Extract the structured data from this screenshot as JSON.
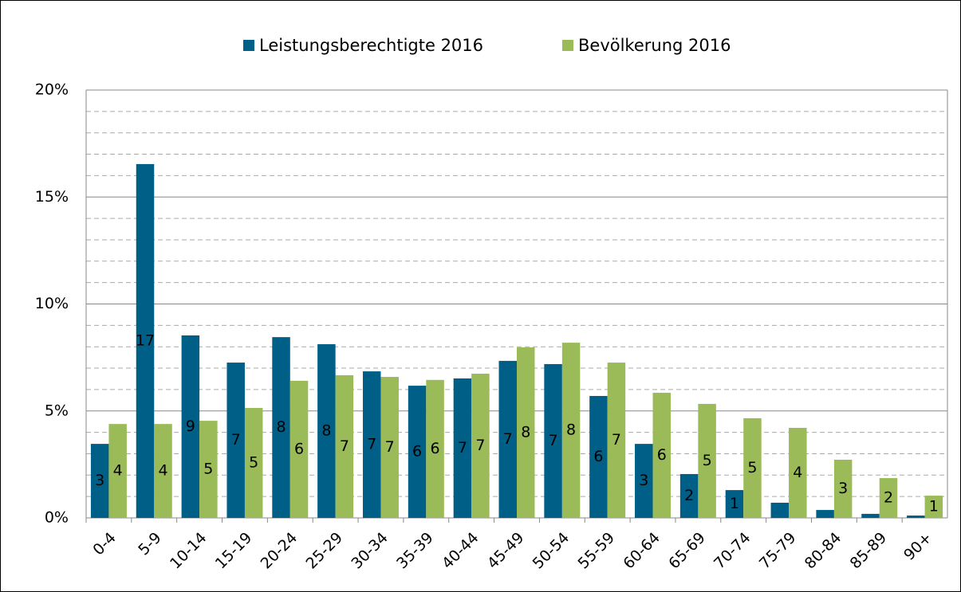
{
  "chart_data": {
    "type": "bar",
    "categories": [
      "0-4",
      "5-9",
      "10-14",
      "15-19",
      "20-24",
      "25-29",
      "30-34",
      "35-39",
      "40-44",
      "45-49",
      "50-54",
      "55-59",
      "60-64",
      "65-69",
      "70-74",
      "75-79",
      "80-84",
      "85-89",
      "90+"
    ],
    "series": [
      {
        "name": "Leistungsberechtigte 2016",
        "color": "#005f87",
        "label_color": "#ffffff",
        "values": [
          3.46,
          16.54,
          8.53,
          7.26,
          8.45,
          8.12,
          6.85,
          6.18,
          6.52,
          7.34,
          7.19,
          5.7,
          3.46,
          2.05,
          1.3,
          0.71,
          0.37,
          0.19,
          0.11
        ],
        "value_labels": [
          "3",
          "17",
          "9",
          "7",
          "8",
          "8",
          "7",
          "6",
          "7",
          "7",
          "7",
          "6",
          "3",
          "2",
          "1",
          null,
          null,
          null,
          null
        ]
      },
      {
        "name": "Bevölkerung 2016",
        "color": "#9bbb59",
        "label_color": "#000000",
        "values": [
          4.39,
          4.39,
          4.54,
          5.14,
          6.41,
          6.67,
          6.59,
          6.45,
          6.74,
          7.97,
          8.19,
          7.26,
          5.85,
          5.33,
          4.66,
          4.21,
          2.72,
          1.86,
          1.04
        ],
        "value_labels": [
          "4",
          "4",
          "5",
          "5",
          "6",
          "7",
          "7",
          "6",
          "7",
          "8",
          "8",
          "7",
          "6",
          "5",
          "5",
          "4",
          "3",
          "2",
          "1"
        ]
      }
    ],
    "ylim": [
      0,
      20
    ],
    "yticks": [
      {
        "value": 0,
        "label": "0%"
      },
      {
        "value": 5,
        "label": "5%"
      },
      {
        "value": 10,
        "label": "10%"
      },
      {
        "value": 15,
        "label": "15%"
      },
      {
        "value": 20,
        "label": "20%"
      }
    ],
    "minor_yticks": [
      1,
      2,
      3,
      4,
      6,
      7,
      8,
      9,
      11,
      12,
      13,
      14,
      16,
      17,
      18,
      19
    ],
    "grid": true,
    "legend": "top"
  }
}
